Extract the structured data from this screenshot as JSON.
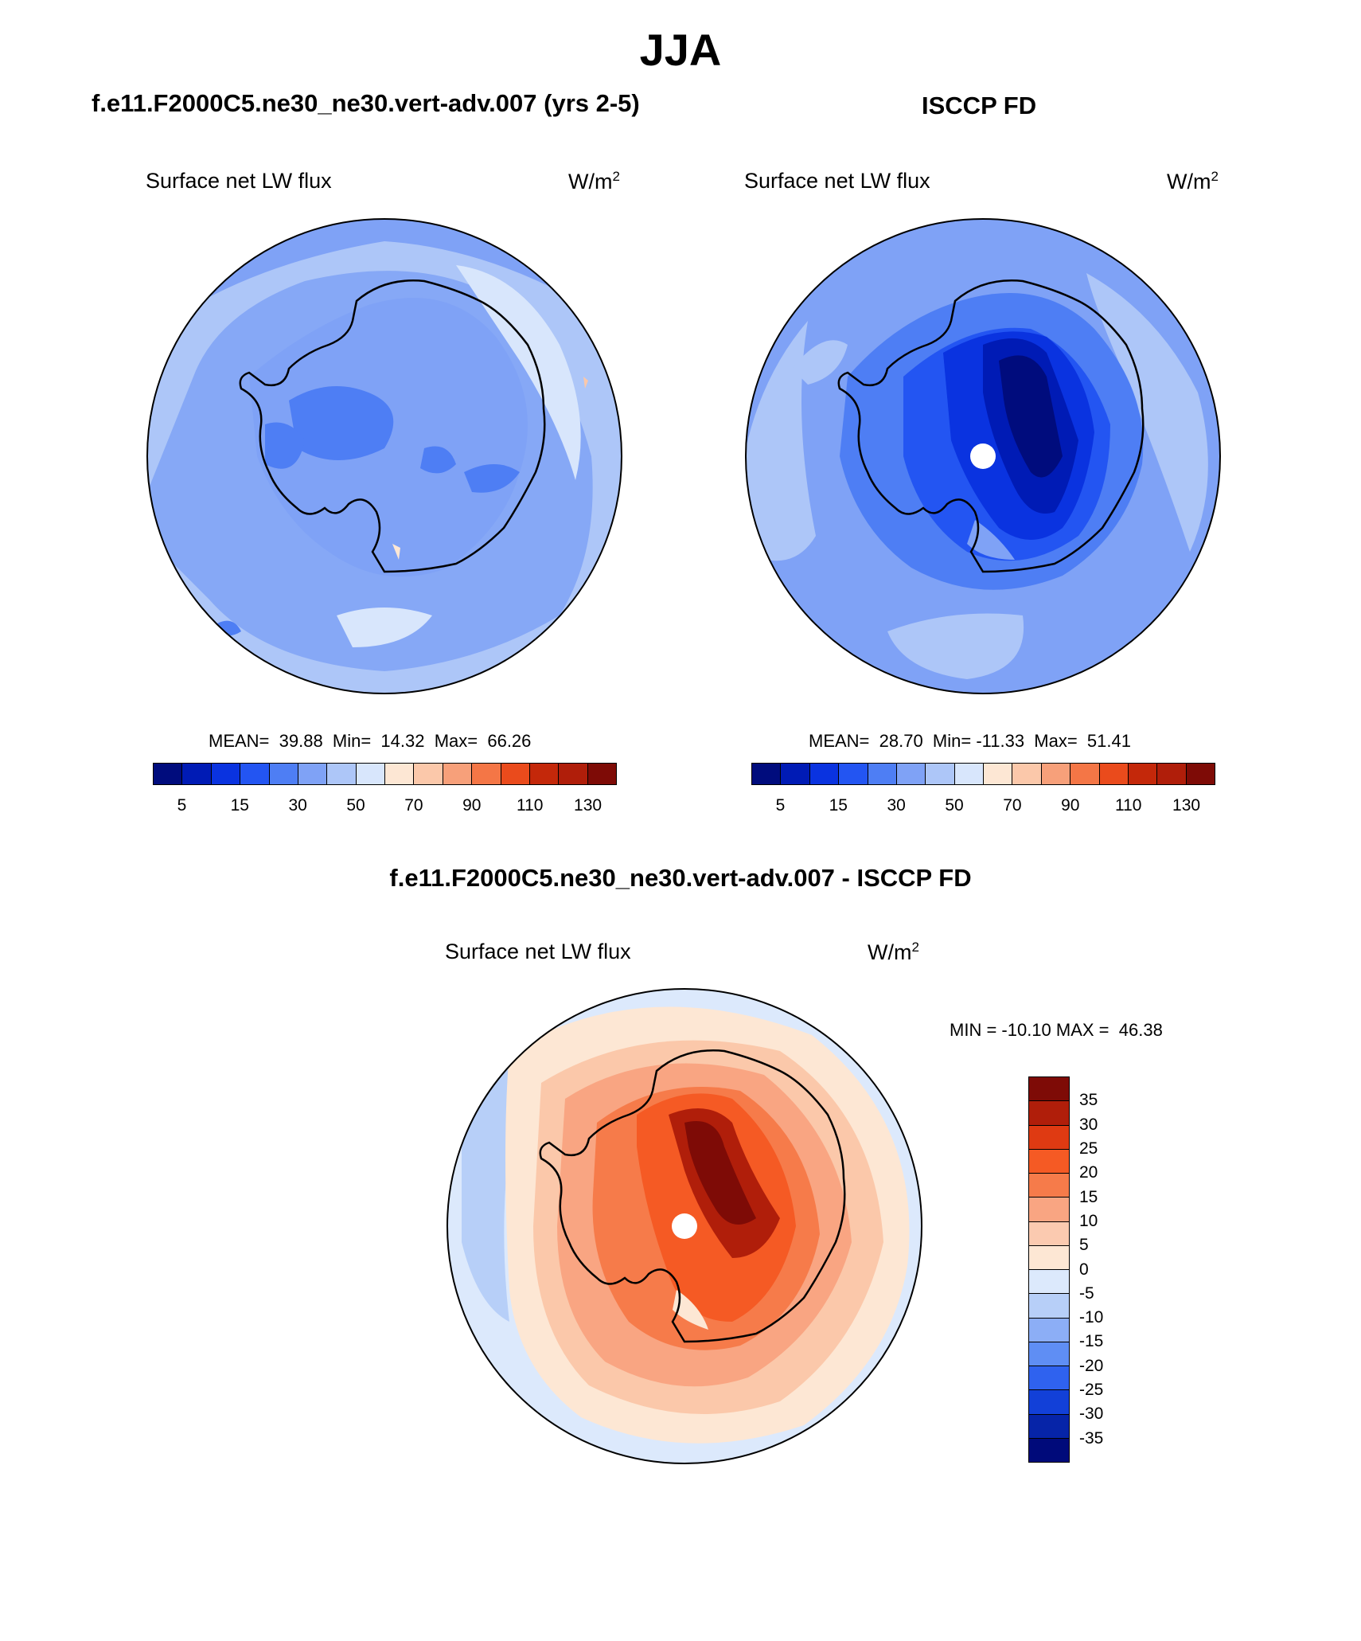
{
  "title": "JJA",
  "panels": {
    "model": {
      "title": "f.e11.F2000C5.ne30_ne30.vert-adv.007 (yrs 2-5)",
      "variable": "Surface net LW flux",
      "unit": "W/m",
      "unit_sup": "2",
      "stats": "MEAN=  39.88  Min=  14.32  Max=  66.26"
    },
    "obs": {
      "title": "ISCCP FD",
      "variable": "Surface net LW flux",
      "unit": "W/m",
      "unit_sup": "2",
      "stats": "MEAN=  28.70  Min= -11.33  Max=  51.41"
    },
    "diff": {
      "title": "f.e11.F2000C5.ne30_ne30.vert-adv.007 - ISCCP FD",
      "variable": "Surface net LW flux",
      "unit": "W/m",
      "unit_sup": "2",
      "stats": "MIN = -10.10 MAX =  46.38"
    }
  },
  "colorbar_abs": {
    "colors": [
      "#000c7d",
      "#001bb5",
      "#0a33e0",
      "#2355f2",
      "#4e7ef4",
      "#7fa2f6",
      "#adc6f8",
      "#d8e6fc",
      "#fde7d4",
      "#fbc8aa",
      "#f7a07a",
      "#f47646",
      "#ea4b1c",
      "#c4280a",
      "#b01e0a",
      "#7e0b06"
    ],
    "tick_labels": [
      "5",
      "15",
      "30",
      "50",
      "70",
      "90",
      "110",
      "130"
    ]
  },
  "colorbar_diff": {
    "colors": [
      "#7e0b06",
      "#b01e0a",
      "#df3a12",
      "#f55a24",
      "#f67b4a",
      "#f9a582",
      "#fbcab0",
      "#fde7d4",
      "#dce9fc",
      "#b7cff8",
      "#8caef6",
      "#5f8ef4",
      "#2f62ef",
      "#1240d8",
      "#0624a8",
      "#000a7a"
    ],
    "tick_labels": [
      "35",
      "30",
      "25",
      "20",
      "15",
      "10",
      "5",
      "0",
      "-5",
      "-10",
      "-15",
      "-20",
      "-25",
      "-30",
      "-35"
    ]
  }
}
